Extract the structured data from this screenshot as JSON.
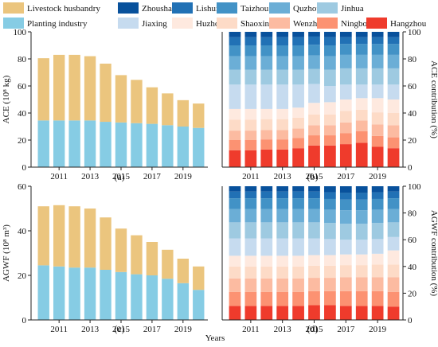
{
  "colors": {
    "livestock": "#ebc57e",
    "planting": "#86cce4",
    "cities": {
      "Zhoushan": "#08519c",
      "Lishui": "#2171b5",
      "Taizhou": "#4292c6",
      "Quzhou": "#6baed6",
      "Jinhua": "#9ecae1",
      "Jiaxing": "#c6dbef",
      "Huzhou": "#fee9df",
      "Shaoxing": "#fddbc7",
      "Wenzhou": "#fcbba1",
      "Ningbo": "#fc9272",
      "Hangzhou": "#ef3b2c"
    }
  },
  "legend": {
    "row1": [
      "Livestock husbandry",
      "Zhoushan",
      "Lishui",
      "Taizhou",
      "Quzhou",
      "Jinhua"
    ],
    "row2": [
      "Planting industry",
      "Jiaxing",
      "Huzhou",
      "Shaoxing",
      "Wenzhou",
      "Ningbo",
      "Hangzhou"
    ]
  },
  "x_axis_title": "Years",
  "panel_labels": [
    "(a)",
    "(b)",
    "(c)",
    "(d)"
  ],
  "chart_data": [
    {
      "panel": "(a)",
      "type": "bar",
      "stacked": true,
      "categories": [
        2010,
        2011,
        2012,
        2013,
        2014,
        2015,
        2016,
        2017,
        2018,
        2019,
        2020
      ],
      "x_tick_labels": [
        "2011",
        "2013",
        "2015",
        "2017",
        "2019"
      ],
      "ylabel": "ACE (10⁸ kg)",
      "ylim": [
        0,
        100
      ],
      "y_ticks": [
        0,
        20,
        40,
        60,
        80,
        100
      ],
      "series": [
        {
          "name": "Planting industry",
          "values": [
            34.5,
            34.5,
            34.5,
            34.5,
            33.5,
            33,
            32.5,
            32,
            31,
            30,
            29
          ]
        },
        {
          "name": "Livestock husbandry",
          "values": [
            46,
            48.5,
            48.5,
            47.5,
            43,
            35,
            32,
            27,
            23.5,
            19.5,
            18
          ]
        }
      ]
    },
    {
      "panel": "(b)",
      "type": "bar",
      "stacked": true,
      "categories": [
        2010,
        2011,
        2012,
        2013,
        2014,
        2015,
        2016,
        2017,
        2018,
        2019,
        2020
      ],
      "x_tick_labels": [
        "2011",
        "2013",
        "2015",
        "2017",
        "2019"
      ],
      "ylabel": "ACE contribution (%)",
      "ylim": [
        0,
        100
      ],
      "y_ticks": [
        0,
        20,
        40,
        60,
        80,
        100
      ],
      "series": [
        {
          "name": "Hangzhou",
          "values": [
            12.5,
            12.5,
            13,
            13,
            14,
            16,
            16,
            17,
            18,
            15,
            14
          ]
        },
        {
          "name": "Ningbo",
          "values": [
            7.5,
            7.5,
            7.5,
            7.5,
            7.5,
            7.5,
            7.5,
            8,
            8.5,
            8,
            8
          ]
        },
        {
          "name": "Wenzhou",
          "values": [
            7,
            7,
            7,
            7,
            7,
            7.5,
            7.5,
            8,
            8,
            8.5,
            9
          ]
        },
        {
          "name": "Shaoxing",
          "values": [
            8,
            8,
            8,
            8,
            8,
            8,
            8,
            8.5,
            8,
            9,
            9
          ]
        },
        {
          "name": "Huzhou",
          "values": [
            8,
            8,
            7.5,
            7.5,
            7.5,
            8.5,
            9,
            8.5,
            8.5,
            10.5,
            10
          ]
        },
        {
          "name": "Jiaxing",
          "values": [
            18,
            18,
            18,
            18,
            17,
            14,
            12,
            11,
            10,
            10,
            11
          ]
        },
        {
          "name": "Jinhua",
          "values": [
            11,
            11,
            11,
            11,
            11,
            11,
            12,
            12,
            12,
            12,
            12
          ]
        },
        {
          "name": "Quzhou",
          "values": [
            10,
            10,
            10,
            10,
            10,
            10,
            10,
            10,
            10,
            10,
            10
          ]
        },
        {
          "name": "Taizhou",
          "values": [
            8,
            8,
            8,
            8,
            8,
            8,
            8,
            8,
            8,
            8,
            8
          ]
        },
        {
          "name": "Lishui",
          "values": [
            6,
            6,
            6,
            6,
            6,
            6,
            6,
            5,
            5,
            5,
            5
          ]
        },
        {
          "name": "Zhoushan",
          "values": [
            4,
            4,
            4,
            4,
            4,
            3.5,
            4,
            4,
            4,
            4,
            4
          ]
        }
      ]
    },
    {
      "panel": "(c)",
      "type": "bar",
      "stacked": true,
      "categories": [
        2010,
        2011,
        2012,
        2013,
        2014,
        2015,
        2016,
        2017,
        2018,
        2019,
        2020
      ],
      "x_tick_labels": [
        "2011",
        "2013",
        "2015",
        "2017",
        "2019"
      ],
      "ylabel": "AGWF (10⁸ m³)",
      "ylim": [
        0,
        60
      ],
      "y_ticks": [
        0,
        20,
        40,
        60
      ],
      "series": [
        {
          "name": "Planting industry",
          "values": [
            24.5,
            24,
            23.5,
            23.5,
            22.5,
            21.5,
            20.5,
            20,
            18.5,
            16.5,
            13.5
          ]
        },
        {
          "name": "Livestock husbandry",
          "values": [
            26.5,
            27.5,
            27.5,
            26.5,
            23.5,
            19.5,
            17.5,
            15,
            13,
            11,
            10.5
          ]
        }
      ]
    },
    {
      "panel": "(d)",
      "type": "bar",
      "stacked": true,
      "categories": [
        2010,
        2011,
        2012,
        2013,
        2014,
        2015,
        2016,
        2017,
        2018,
        2019,
        2020
      ],
      "x_tick_labels": [
        "2011",
        "2013",
        "2015",
        "2017",
        "2019"
      ],
      "ylabel": "AGWF contribution (%)",
      "ylim": [
        0,
        100
      ],
      "y_ticks": [
        0,
        20,
        40,
        60,
        80,
        100
      ],
      "series": [
        {
          "name": "Hangzhou",
          "values": [
            10.5,
            10.5,
            10.5,
            10.5,
            10.5,
            11,
            11,
            10.5,
            10.5,
            10.5,
            10
          ]
        },
        {
          "name": "Ningbo",
          "values": [
            10.5,
            10.5,
            10.5,
            10.5,
            10.5,
            10.5,
            10.5,
            11,
            11,
            11,
            11
          ]
        },
        {
          "name": "Wenzhou",
          "values": [
            10,
            10,
            10,
            10,
            10,
            10,
            10,
            10.5,
            10.5,
            10.5,
            11
          ]
        },
        {
          "name": "Shaoxing",
          "values": [
            9,
            9,
            9,
            9,
            9,
            9,
            9,
            9,
            9,
            9.5,
            9.5
          ]
        },
        {
          "name": "Huzhou",
          "values": [
            8,
            8,
            8,
            8,
            8,
            8,
            8,
            8,
            8,
            8,
            10.5
          ]
        },
        {
          "name": "Jiaxing",
          "values": [
            13,
            13,
            13,
            13,
            13,
            12.5,
            12,
            11,
            11,
            11,
            10
          ]
        },
        {
          "name": "Jinhua",
          "values": [
            12,
            12,
            12,
            12,
            12,
            12,
            12,
            12,
            12,
            12,
            11
          ]
        },
        {
          "name": "Quzhou",
          "values": [
            10,
            10,
            10,
            10,
            10,
            10,
            10,
            10,
            10,
            10,
            10
          ]
        },
        {
          "name": "Taizhou",
          "values": [
            8,
            8,
            8,
            8,
            8,
            8,
            8,
            8,
            8,
            8,
            8
          ]
        },
        {
          "name": "Lishui",
          "values": [
            5,
            5,
            5,
            5,
            5,
            5,
            5,
            5,
            5,
            5,
            5
          ]
        },
        {
          "name": "Zhoushan",
          "values": [
            4,
            4,
            4,
            4,
            4,
            4,
            4.5,
            5,
            5,
            4.5,
            4
          ]
        }
      ]
    }
  ]
}
